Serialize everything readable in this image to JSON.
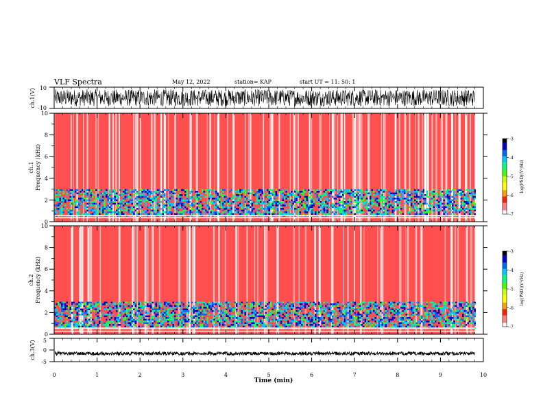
{
  "header": {
    "title": "VLF Spectra",
    "date": "May 12, 2022",
    "station": "station= KAP",
    "start": "start  UT =   11: 50: 1"
  },
  "colors": {
    "spectrogram_scale": [
      "#000000",
      "#0000c0",
      "#0066ff",
      "#00c8ff",
      "#00ff80",
      "#40ff00",
      "#c8ff00",
      "#ffff00",
      "#ffa000",
      "#ff2000",
      "#ff8080",
      "#ffffff"
    ],
    "waveform": "#000000"
  },
  "chart_data": [
    {
      "type": "line",
      "name": "ch1-waveform",
      "ylabel": "ch.1(V)",
      "ylim": [
        -10,
        10
      ],
      "yticks": [
        "10",
        "-10"
      ],
      "xlim": [
        0,
        10
      ],
      "description_of_signal": "dense noisy waveform spanning roughly -8 to +8 V over 0 to 9.8 min"
    },
    {
      "type": "heatmap",
      "name": "ch1-spectrogram",
      "ylabel": "ch.1\nFrequency (kHz)",
      "ylim": [
        0,
        10
      ],
      "yticks": [
        "0",
        "2",
        "4",
        "6",
        "8",
        "10"
      ],
      "xlim": [
        0,
        10
      ],
      "data_extent_min": 9.8,
      "colorbar": {
        "label": "log(PSD)(V²/Hz)",
        "ticks": [
          "-3",
          "-4",
          "-5",
          "-6",
          "-7"
        ],
        "range": [
          -7,
          -3
        ]
      },
      "strong_band_khz": [
        0.5,
        3
      ]
    },
    {
      "type": "heatmap",
      "name": "ch2-spectrogram",
      "ylabel": "ch.2\nFrequency (kHz)",
      "ylim": [
        0,
        10
      ],
      "yticks": [
        "0",
        "2",
        "4",
        "6",
        "8",
        "10"
      ],
      "xlim": [
        0,
        10
      ],
      "data_extent_min": 9.8,
      "colorbar": {
        "label": "log(PSD)(V²/Hz)",
        "ticks": [
          "-3",
          "-4",
          "-5",
          "-6",
          "-7"
        ],
        "range": [
          -7,
          -3
        ]
      },
      "strong_band_khz": [
        0.5,
        3
      ]
    },
    {
      "type": "line",
      "name": "ch3-waveform",
      "ylabel": "ch.3(V)",
      "ylim": [
        -5,
        5
      ],
      "yticks": [
        "5",
        "0",
        "-5"
      ],
      "xlim": [
        0,
        10
      ],
      "level_v": -1.5
    }
  ],
  "xaxis": {
    "label": "Time (min)",
    "ticks": [
      "0",
      "1",
      "2",
      "3",
      "4",
      "5",
      "6",
      "7",
      "8",
      "9",
      "10"
    ]
  }
}
